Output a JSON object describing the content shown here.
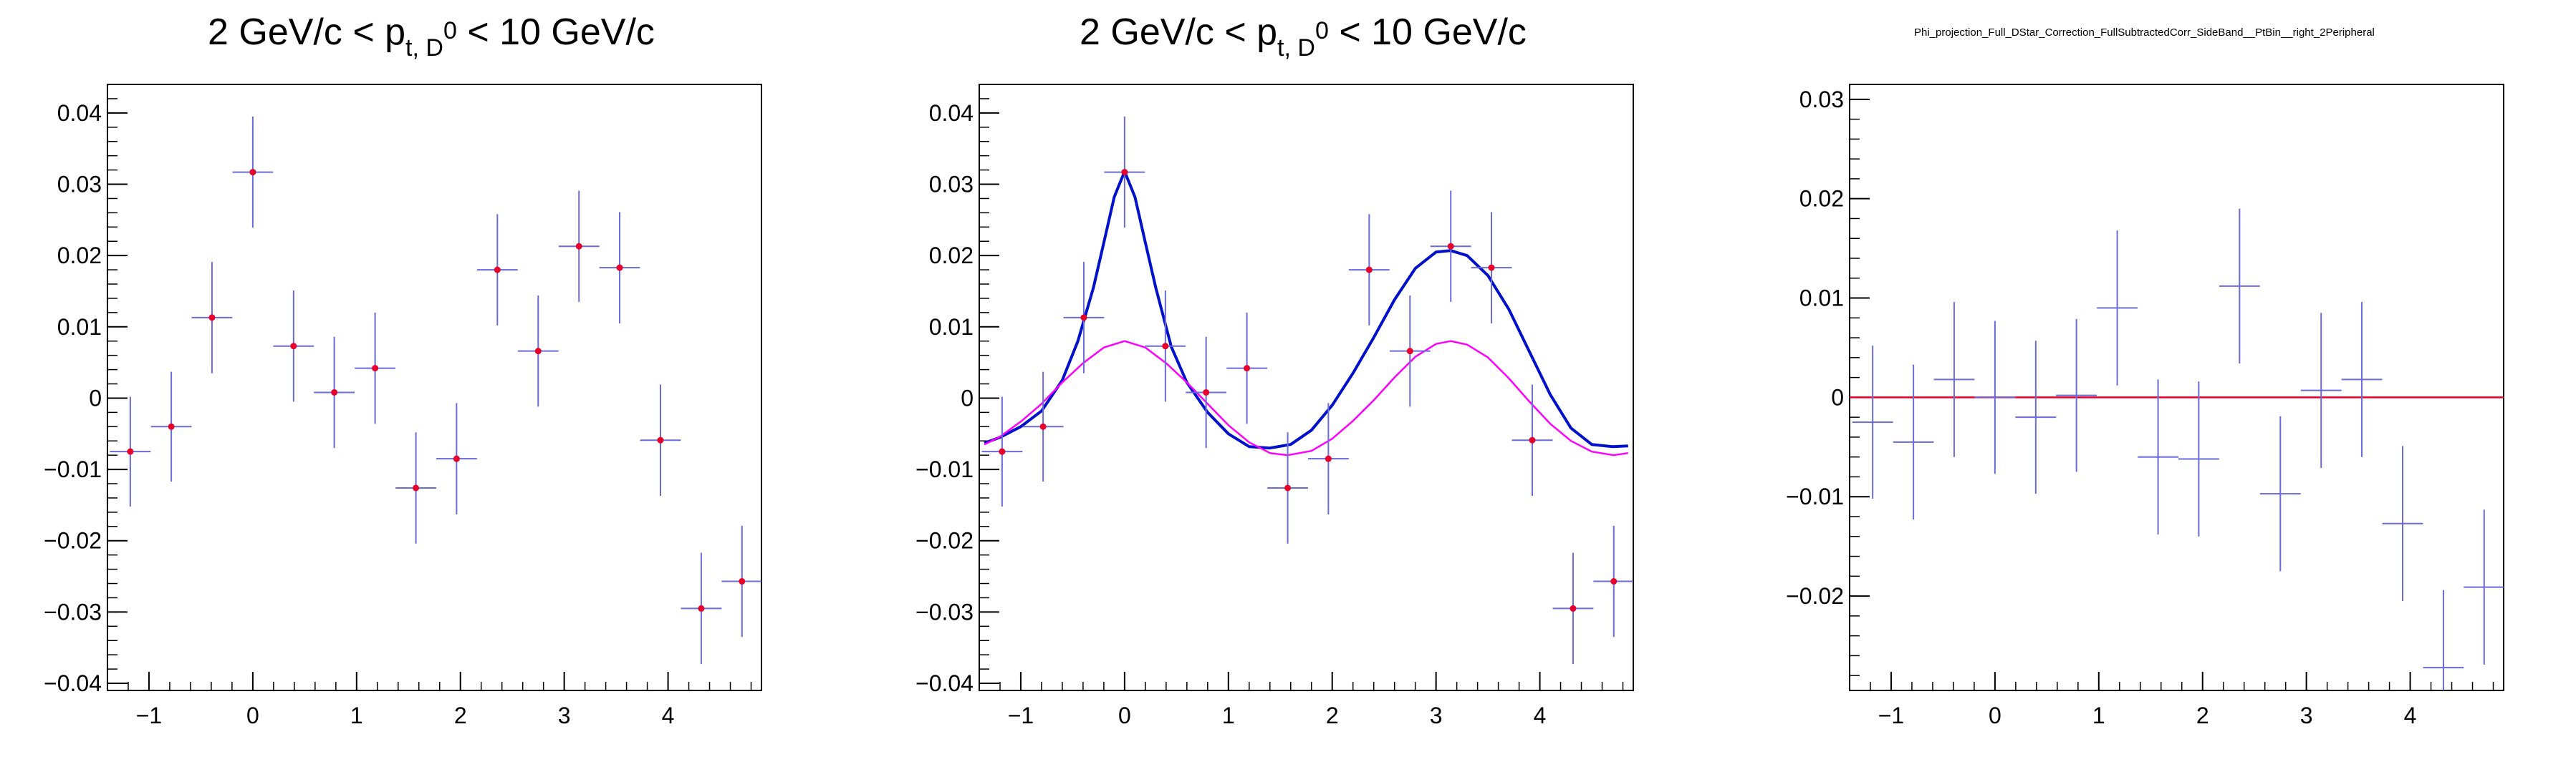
{
  "colors": {
    "error_bar": "#6a6ad8",
    "marker": "#e8002a",
    "fit_total": "#0011cc",
    "fit_baseline": "#ff00ff",
    "zero_line": "#e8002a",
    "frame": "#000000"
  },
  "chart_data": [
    {
      "type": "scatter",
      "title": {
        "prefix": "2 GeV/c < p",
        "subscript": "t, D",
        "superscript": "0",
        "suffix": " < 10 GeV/c"
      },
      "xlabel": "",
      "ylabel": "",
      "xlim": [
        -1.4,
        4.9
      ],
      "ylim": [
        -0.041,
        0.044
      ],
      "x_ticks": [
        -1,
        0,
        1,
        2,
        3,
        4
      ],
      "x_tick_labels": [
        "−1",
        "0",
        "1",
        "2",
        "3",
        "4"
      ],
      "y_ticks": [
        -0.04,
        -0.03,
        -0.02,
        -0.01,
        0,
        0.01,
        0.02,
        0.03,
        0.04
      ],
      "y_tick_labels": [
        "−0.04",
        "−0.03",
        "−0.02",
        "−0.01",
        "0",
        "0.01",
        "0.02",
        "0.03",
        "0.04"
      ],
      "markers": true,
      "half_bin_width": 0.196,
      "x": [
        -1.18,
        -0.785,
        -0.393,
        0.0,
        0.393,
        0.785,
        1.178,
        1.571,
        1.963,
        2.356,
        2.749,
        3.142,
        3.534,
        3.927,
        4.32,
        4.712
      ],
      "y": [
        -0.0075,
        -0.004,
        0.0113,
        0.0317,
        0.0073,
        0.0008,
        0.0042,
        -0.0126,
        -0.0085,
        0.018,
        0.0066,
        0.0213,
        0.0183,
        -0.0059,
        -0.0295,
        -0.0257
      ],
      "y_err": [
        0.0077,
        0.0077,
        0.0078,
        0.0078,
        0.0078,
        0.0078,
        0.0078,
        0.0078,
        0.0078,
        0.0078,
        0.0078,
        0.0078,
        0.0078,
        0.0078,
        0.0078,
        0.0078
      ]
    },
    {
      "type": "scatter",
      "title": {
        "prefix": "2 GeV/c < p",
        "subscript": "t, D",
        "superscript": "0",
        "suffix": " < 10 GeV/c"
      },
      "xlabel": "",
      "ylabel": "",
      "xlim": [
        -1.4,
        4.9
      ],
      "ylim": [
        -0.041,
        0.044
      ],
      "x_ticks": [
        -1,
        0,
        1,
        2,
        3,
        4
      ],
      "x_tick_labels": [
        "−1",
        "0",
        "1",
        "2",
        "3",
        "4"
      ],
      "y_ticks": [
        -0.04,
        -0.03,
        -0.02,
        -0.01,
        0,
        0.01,
        0.02,
        0.03,
        0.04
      ],
      "y_tick_labels": [
        "−0.04",
        "−0.03",
        "−0.02",
        "−0.01",
        "0",
        "0.01",
        "0.02",
        "0.03",
        "0.04"
      ],
      "markers": true,
      "half_bin_width": 0.196,
      "x": [
        -1.18,
        -0.785,
        -0.393,
        0.0,
        0.393,
        0.785,
        1.178,
        1.571,
        1.963,
        2.356,
        2.749,
        3.142,
        3.534,
        3.927,
        4.32,
        4.712
      ],
      "y": [
        -0.0075,
        -0.004,
        0.0113,
        0.0317,
        0.0073,
        0.0008,
        0.0042,
        -0.0126,
        -0.0085,
        0.018,
        0.0066,
        0.0213,
        0.0183,
        -0.0059,
        -0.0295,
        -0.0257
      ],
      "y_err": [
        0.0077,
        0.0077,
        0.0078,
        0.0078,
        0.0078,
        0.0078,
        0.0078,
        0.0078,
        0.0078,
        0.0078,
        0.0078,
        0.0078,
        0.0078,
        0.0078,
        0.0078,
        0.0078
      ],
      "curves": [
        {
          "x": [
            -1.35,
            -1.2,
            -1.0,
            -0.8,
            -0.6,
            -0.45,
            -0.3,
            -0.2,
            -0.1,
            0.0,
            0.1,
            0.2,
            0.3,
            0.45,
            0.6,
            0.8,
            1.0,
            1.2,
            1.4,
            1.6,
            1.8,
            2.0,
            2.2,
            2.4,
            2.6,
            2.8,
            3.0,
            3.14,
            3.3,
            3.5,
            3.7,
            3.9,
            4.1,
            4.3,
            4.5,
            4.7,
            4.85
          ],
          "y": [
            -0.0063,
            -0.0055,
            -0.004,
            -0.0018,
            0.0025,
            0.008,
            0.0155,
            0.0218,
            0.0282,
            0.0318,
            0.0282,
            0.0218,
            0.0155,
            0.0072,
            0.0022,
            -0.002,
            -0.005,
            -0.0068,
            -0.007,
            -0.0065,
            -0.0045,
            -0.001,
            0.0035,
            0.0085,
            0.0138,
            0.0182,
            0.0205,
            0.0207,
            0.02,
            0.0172,
            0.0125,
            0.0065,
            0.0005,
            -0.0042,
            -0.0065,
            -0.0068,
            -0.0067
          ]
        },
        {
          "x": [
            -1.35,
            -1.2,
            -1.0,
            -0.8,
            -0.6,
            -0.4,
            -0.2,
            0.0,
            0.2,
            0.4,
            0.6,
            0.8,
            1.0,
            1.2,
            1.4,
            1.571,
            1.8,
            2.0,
            2.2,
            2.4,
            2.6,
            2.8,
            3.0,
            3.142,
            3.3,
            3.5,
            3.7,
            3.9,
            4.1,
            4.3,
            4.5,
            4.712,
            4.85
          ],
          "y": [
            -0.0065,
            -0.0054,
            -0.0033,
            -0.0008,
            0.0022,
            0.0049,
            0.0071,
            0.008,
            0.0071,
            0.0049,
            0.0022,
            -0.0008,
            -0.0038,
            -0.0062,
            -0.0077,
            -0.008,
            -0.0074,
            -0.0057,
            -0.0032,
            -0.0003,
            0.0029,
            0.0058,
            0.0076,
            0.008,
            0.0075,
            0.0057,
            0.0028,
            -0.0005,
            -0.0036,
            -0.006,
            -0.0075,
            -0.008,
            -0.0077
          ]
        }
      ]
    },
    {
      "type": "scatter",
      "title": "Phi_projection_Full_DStar_Correction_FullSubtractedCorr_SideBand__PtBin__right_2Peripheral",
      "xlabel": "",
      "ylabel": "",
      "xlim": [
        -1.4,
        4.9
      ],
      "ylim": [
        -0.0295,
        0.0315
      ],
      "x_ticks": [
        -1,
        0,
        1,
        2,
        3,
        4
      ],
      "x_tick_labels": [
        "−1",
        "0",
        "1",
        "2",
        "3",
        "4"
      ],
      "y_ticks": [
        -0.02,
        -0.01,
        0,
        0.01,
        0.02,
        0.03
      ],
      "y_tick_labels": [
        "−0.02",
        "−0.01",
        "0",
        "0.01",
        "0.02",
        "0.03"
      ],
      "markers": false,
      "half_bin_width": 0.196,
      "x": [
        -1.178,
        -0.785,
        -0.393,
        0.0,
        0.393,
        0.785,
        1.178,
        1.571,
        1.963,
        2.356,
        2.749,
        3.142,
        3.534,
        3.927,
        4.32,
        4.712
      ],
      "y": [
        -0.0025,
        -0.0045,
        0.0018,
        0.0,
        -0.002,
        0.0002,
        0.009,
        -0.006,
        -0.0062,
        0.0112,
        -0.0097,
        0.0007,
        0.0018,
        -0.0127,
        -0.0272,
        -0.0191
      ],
      "y_err": [
        0.0077,
        0.0078,
        0.0078,
        0.0077,
        0.0077,
        0.0077,
        0.0078,
        0.0078,
        0.0078,
        0.0078,
        0.0078,
        0.0078,
        0.0078,
        0.0078,
        0.0078,
        0.0078
      ],
      "reference_line_y": 0
    }
  ]
}
